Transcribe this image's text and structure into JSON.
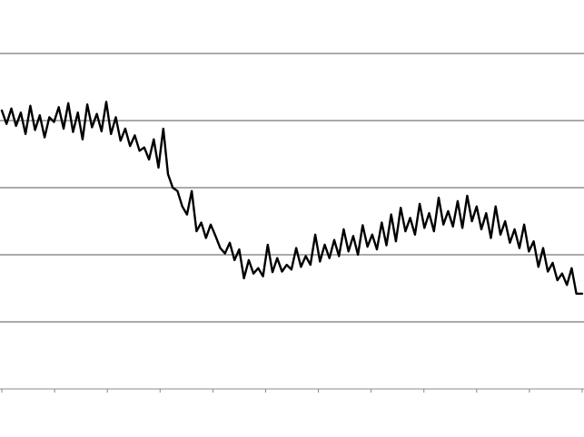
{
  "chart_data": {
    "type": "line",
    "title": "",
    "xlabel": "",
    "ylabel": "",
    "grid": true,
    "legend": "none",
    "xlim": [
      0,
      11
    ],
    "ylim": [
      0,
      5
    ],
    "x_ticks": [
      0,
      1,
      2,
      3,
      4,
      5,
      6,
      7,
      8,
      9,
      10,
      11
    ],
    "y_gridlines": [
      1,
      2,
      3,
      4,
      5
    ],
    "colors": {
      "line": "#000000",
      "grid": "#555555",
      "axis": "#888888",
      "background": "#ffffff"
    },
    "series": [
      {
        "x": [
          0.0,
          0.09,
          0.18,
          0.27,
          0.36,
          0.45,
          0.54,
          0.63,
          0.72,
          0.81,
          0.9,
          0.99,
          1.08,
          1.17,
          1.26,
          1.35,
          1.44,
          1.53,
          1.62,
          1.71,
          1.8,
          1.89,
          1.98,
          2.07,
          2.16,
          2.25,
          2.34,
          2.43,
          2.52,
          2.61,
          2.7,
          2.79,
          2.88,
          2.97,
          3.06,
          3.15,
          3.24,
          3.33,
          3.42,
          3.51,
          3.6,
          3.69,
          3.78,
          3.87,
          3.96,
          4.05,
          4.14,
          4.23,
          4.32,
          4.41,
          4.5,
          4.59,
          4.68,
          4.77,
          4.86,
          4.95,
          5.04,
          5.13,
          5.22,
          5.31,
          5.4,
          5.49,
          5.58,
          5.67,
          5.76,
          5.85,
          5.94,
          6.03,
          6.12,
          6.21,
          6.3,
          6.39,
          6.48,
          6.57,
          6.66,
          6.75,
          6.84,
          6.93,
          7.02,
          7.11,
          7.2,
          7.29,
          7.38,
          7.47,
          7.56,
          7.65,
          7.74,
          7.83,
          7.92,
          8.01,
          8.1,
          8.19,
          8.28,
          8.37,
          8.46,
          8.55,
          8.64,
          8.73,
          8.82,
          8.91,
          9.0,
          9.09,
          9.18,
          9.27,
          9.36,
          9.45,
          9.54,
          9.63,
          9.72,
          9.81,
          9.9,
          9.99,
          10.08,
          10.17,
          10.26,
          10.35,
          10.44,
          10.53,
          10.62,
          10.71,
          10.8,
          10.89,
          11.0
        ],
        "y": [
          4.15,
          3.95,
          4.18,
          3.92,
          4.12,
          3.8,
          4.22,
          3.86,
          4.08,
          3.75,
          4.05,
          3.98,
          4.2,
          3.88,
          4.26,
          3.83,
          4.12,
          3.72,
          4.24,
          3.9,
          4.1,
          3.84,
          4.28,
          3.8,
          4.05,
          3.7,
          3.88,
          3.62,
          3.78,
          3.55,
          3.6,
          3.42,
          3.72,
          3.3,
          3.88,
          3.2,
          3.0,
          2.95,
          2.72,
          2.6,
          2.95,
          2.35,
          2.48,
          2.25,
          2.45,
          2.28,
          2.1,
          2.02,
          2.18,
          1.92,
          2.08,
          1.65,
          1.92,
          1.72,
          1.8,
          1.68,
          2.15,
          1.74,
          1.95,
          1.75,
          1.85,
          1.78,
          2.1,
          1.82,
          1.98,
          1.85,
          2.3,
          1.9,
          2.15,
          1.95,
          2.22,
          1.98,
          2.38,
          2.05,
          2.28,
          2.0,
          2.44,
          2.12,
          2.3,
          2.08,
          2.48,
          2.14,
          2.6,
          2.2,
          2.7,
          2.35,
          2.55,
          2.3,
          2.76,
          2.4,
          2.62,
          2.35,
          2.85,
          2.45,
          2.65,
          2.42,
          2.8,
          2.4,
          2.88,
          2.5,
          2.72,
          2.38,
          2.62,
          2.25,
          2.72,
          2.3,
          2.5,
          2.18,
          2.38,
          2.1,
          2.45,
          2.05,
          2.2,
          1.82,
          2.1,
          1.75,
          1.88,
          1.62,
          1.72,
          1.55,
          1.8,
          1.42,
          1.42
        ]
      }
    ]
  }
}
